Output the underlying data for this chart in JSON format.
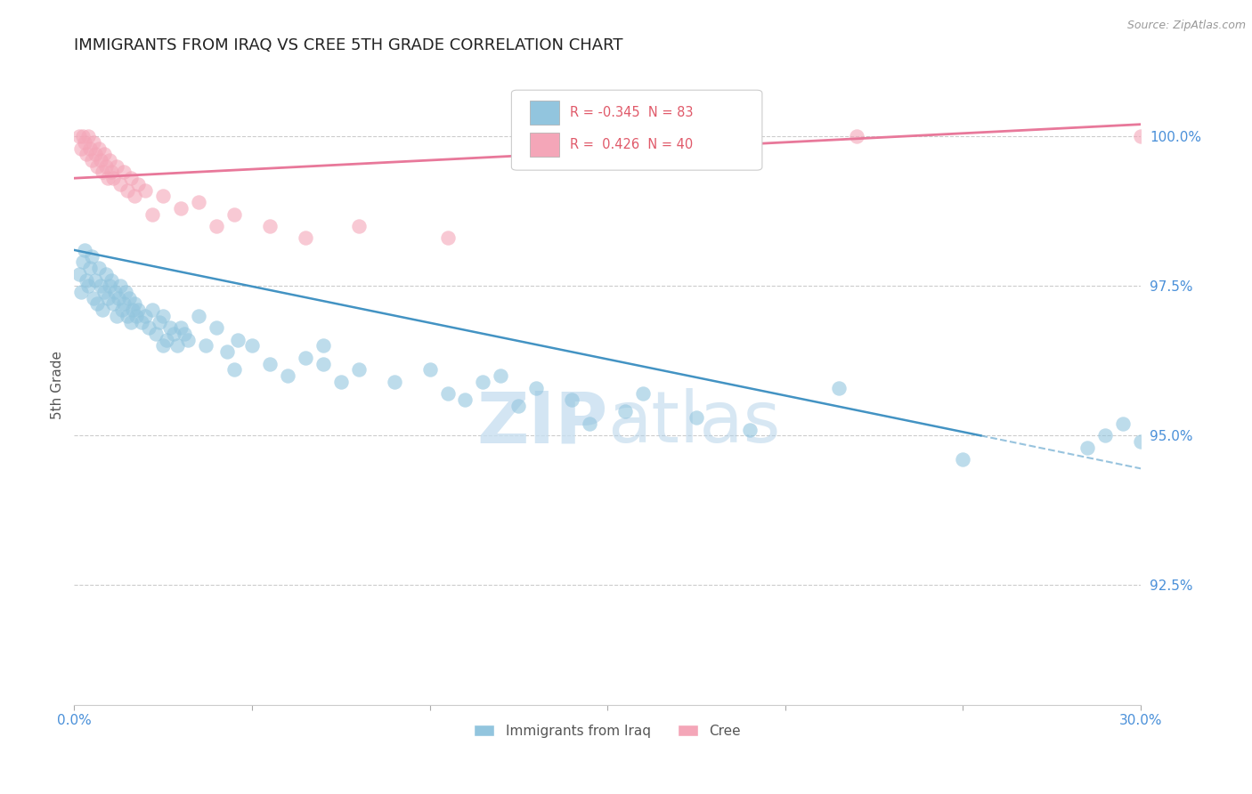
{
  "title": "IMMIGRANTS FROM IRAQ VS CREE 5TH GRADE CORRELATION CHART",
  "source": "Source: ZipAtlas.com",
  "ylabel": "5th Grade",
  "xlim": [
    0.0,
    30.0
  ],
  "ylim": [
    90.5,
    101.2
  ],
  "yticks": [
    92.5,
    95.0,
    97.5,
    100.0
  ],
  "ytick_labels": [
    "92.5%",
    "95.0%",
    "97.5%",
    "100.0%"
  ],
  "xticks": [
    0.0,
    5.0,
    10.0,
    15.0,
    20.0,
    25.0,
    30.0
  ],
  "xtick_labels": [
    "0.0%",
    "",
    "",
    "",
    "",
    "",
    "30.0%"
  ],
  "legend_r_blue": "-0.345",
  "legend_n_blue": "83",
  "legend_r_pink": " 0.426",
  "legend_n_pink": "40",
  "blue_color": "#92c5de",
  "pink_color": "#f4a6b8",
  "blue_line_color": "#4393c3",
  "pink_line_color": "#e8789a",
  "blue_line_x0": 0.0,
  "blue_line_y0": 98.1,
  "blue_line_x1": 25.5,
  "blue_line_y1": 95.0,
  "blue_dash_x0": 25.5,
  "blue_dash_y0": 95.0,
  "blue_dash_x1": 30.0,
  "blue_dash_y1": 94.45,
  "pink_line_x0": 0.0,
  "pink_line_y0": 99.3,
  "pink_line_x1": 30.0,
  "pink_line_y1": 100.2,
  "blue_scatter_x": [
    0.15,
    0.2,
    0.25,
    0.3,
    0.35,
    0.4,
    0.45,
    0.5,
    0.55,
    0.6,
    0.65,
    0.7,
    0.75,
    0.8,
    0.85,
    0.9,
    0.95,
    1.0,
    1.05,
    1.1,
    1.15,
    1.2,
    1.25,
    1.3,
    1.35,
    1.4,
    1.45,
    1.5,
    1.55,
    1.6,
    1.65,
    1.7,
    1.75,
    1.8,
    1.9,
    2.0,
    2.1,
    2.2,
    2.3,
    2.4,
    2.5,
    2.6,
    2.7,
    2.8,
    2.9,
    3.0,
    3.1,
    3.2,
    3.5,
    3.7,
    4.0,
    4.3,
    4.6,
    5.0,
    5.5,
    6.0,
    6.5,
    7.0,
    7.0,
    8.0,
    9.0,
    10.0,
    10.5,
    11.5,
    12.0,
    12.5,
    13.0,
    14.0,
    15.5,
    16.0,
    17.5,
    19.0,
    21.5,
    25.0,
    28.5,
    29.0,
    29.5,
    30.0,
    2.5,
    4.5,
    7.5,
    11.0,
    14.5
  ],
  "blue_scatter_y": [
    97.7,
    97.4,
    97.9,
    98.1,
    97.6,
    97.5,
    97.8,
    98.0,
    97.3,
    97.6,
    97.2,
    97.8,
    97.5,
    97.1,
    97.4,
    97.7,
    97.3,
    97.5,
    97.6,
    97.2,
    97.4,
    97.0,
    97.3,
    97.5,
    97.1,
    97.2,
    97.4,
    97.0,
    97.3,
    96.9,
    97.1,
    97.2,
    97.0,
    97.1,
    96.9,
    97.0,
    96.8,
    97.1,
    96.7,
    96.9,
    97.0,
    96.6,
    96.8,
    96.7,
    96.5,
    96.8,
    96.7,
    96.6,
    97.0,
    96.5,
    96.8,
    96.4,
    96.6,
    96.5,
    96.2,
    96.0,
    96.3,
    96.2,
    96.5,
    96.1,
    95.9,
    96.1,
    95.7,
    95.9,
    96.0,
    95.5,
    95.8,
    95.6,
    95.4,
    95.7,
    95.3,
    95.1,
    95.8,
    94.6,
    94.8,
    95.0,
    95.2,
    94.9,
    96.5,
    96.1,
    95.9,
    95.6,
    95.2
  ],
  "pink_scatter_x": [
    0.15,
    0.2,
    0.25,
    0.3,
    0.35,
    0.4,
    0.45,
    0.5,
    0.55,
    0.6,
    0.65,
    0.7,
    0.75,
    0.8,
    0.85,
    0.9,
    0.95,
    1.0,
    1.05,
    1.1,
    1.2,
    1.3,
    1.4,
    1.5,
    1.6,
    1.7,
    1.8,
    2.0,
    2.2,
    2.5,
    3.0,
    3.5,
    4.0,
    4.5,
    5.5,
    6.5,
    8.0,
    10.5,
    22.0,
    30.0
  ],
  "pink_scatter_y": [
    100.0,
    99.8,
    100.0,
    99.9,
    99.7,
    100.0,
    99.8,
    99.6,
    99.9,
    99.7,
    99.5,
    99.8,
    99.6,
    99.4,
    99.7,
    99.5,
    99.3,
    99.6,
    99.4,
    99.3,
    99.5,
    99.2,
    99.4,
    99.1,
    99.3,
    99.0,
    99.2,
    99.1,
    98.7,
    99.0,
    98.8,
    98.9,
    98.5,
    98.7,
    98.5,
    98.3,
    98.5,
    98.3,
    100.0,
    100.0
  ]
}
